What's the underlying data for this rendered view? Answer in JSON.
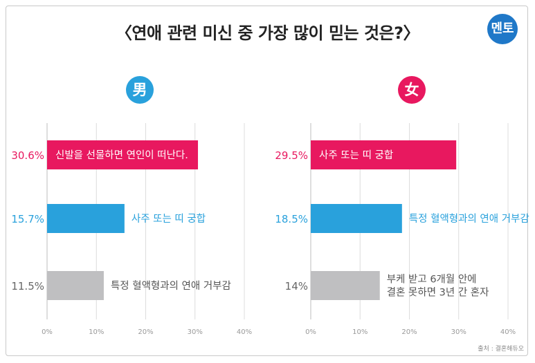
{
  "title": "〈연애 관련 미신 중 가장 많이 믿는 것은?〉",
  "logo_text": "멘토",
  "source": "출처 : 결혼해듀오",
  "colors": {
    "pink": "#e8185f",
    "blue": "#29a1dc",
    "gray": "#bfbfc1"
  },
  "chart_data": [
    {
      "type": "bar",
      "orientation": "horizontal",
      "title": "男",
      "badge_color": "#29a1dc",
      "xlim": [
        0,
        40
      ],
      "xticks": [
        "0%",
        "10%",
        "20%",
        "30%",
        "40%"
      ],
      "categories": [
        "신발을 선물하면 연인이 떠난다.",
        "사주 또는 띠 궁합",
        "특정 혈액형과의 연애 거부감"
      ],
      "values": [
        30.6,
        15.7,
        11.5
      ],
      "value_labels": [
        "30.6%",
        "15.7%",
        "11.5%"
      ],
      "colors": [
        "#e8185f",
        "#29a1dc",
        "#bfbfc1"
      ]
    },
    {
      "type": "bar",
      "orientation": "horizontal",
      "title": "女",
      "badge_color": "#e8185f",
      "xlim": [
        0,
        40
      ],
      "xticks": [
        "0%",
        "10%",
        "20%",
        "30%",
        "40%"
      ],
      "categories": [
        "사주 또는 띠 궁합",
        "특정 혈액형과의 연애 거부감",
        "부케 받고 6개월 안에\n결혼 못하면 3년 간 혼자"
      ],
      "values": [
        29.5,
        18.5,
        14
      ],
      "value_labels": [
        "29.5%",
        "18.5%",
        "14%"
      ],
      "colors": [
        "#e8185f",
        "#29a1dc",
        "#bfbfc1"
      ]
    }
  ]
}
